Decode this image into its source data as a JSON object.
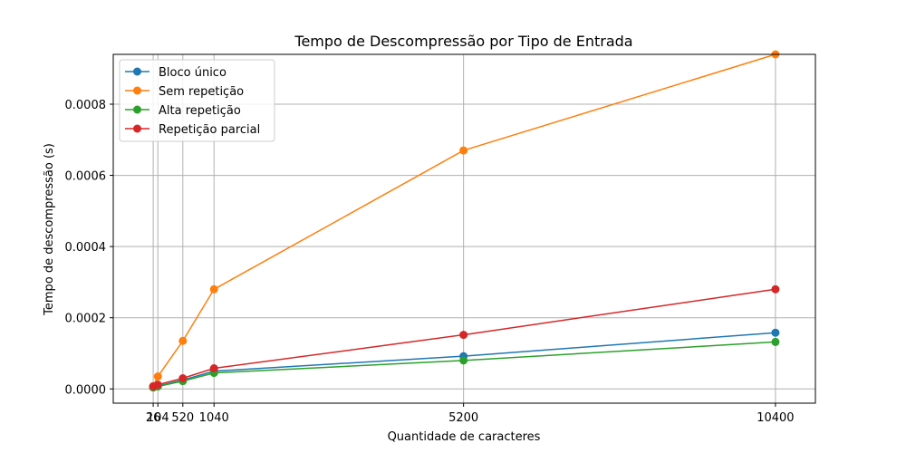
{
  "chart_data": {
    "type": "line",
    "title": "Tempo de Descompressão por Tipo de Entrada",
    "xlabel": "Quantidade de caracteres",
    "ylabel": "Tempo de descompressão (s)",
    "x": [
      26,
      104,
      520,
      1040,
      5200,
      10400
    ],
    "x_tick_labels": [
      "26",
      "104",
      "520",
      "1040",
      "5200",
      "10400"
    ],
    "xlim": [
      -640,
      11066
    ],
    "ylim": [
      -4e-05,
      0.00094
    ],
    "y_ticks": [
      0,
      0.0002,
      0.0004,
      0.0006,
      0.0008
    ],
    "y_tick_labels": [
      "0.0000",
      "0.0002",
      "0.0004",
      "0.0006",
      "0.0008"
    ],
    "grid": true,
    "legend_position": "top-left",
    "series": [
      {
        "name": "Bloco único",
        "color": "#1f77b4",
        "values": [
          5e-06,
          8e-06,
          2.5e-05,
          5e-05,
          9.2e-05,
          0.000158
        ]
      },
      {
        "name": "Sem repetição",
        "color": "#ff7f0e",
        "values": [
          8e-06,
          3.5e-05,
          0.000135,
          0.00028,
          0.00067,
          0.00094
        ]
      },
      {
        "name": "Alta repetição",
        "color": "#2ca02c",
        "values": [
          4e-06,
          7e-06,
          2.2e-05,
          4.5e-05,
          8e-05,
          0.000132
        ]
      },
      {
        "name": "Repetição parcial",
        "color": "#d62728",
        "values": [
          7e-06,
          1.2e-05,
          3e-05,
          5.8e-05,
          0.000152,
          0.00028
        ]
      }
    ]
  }
}
